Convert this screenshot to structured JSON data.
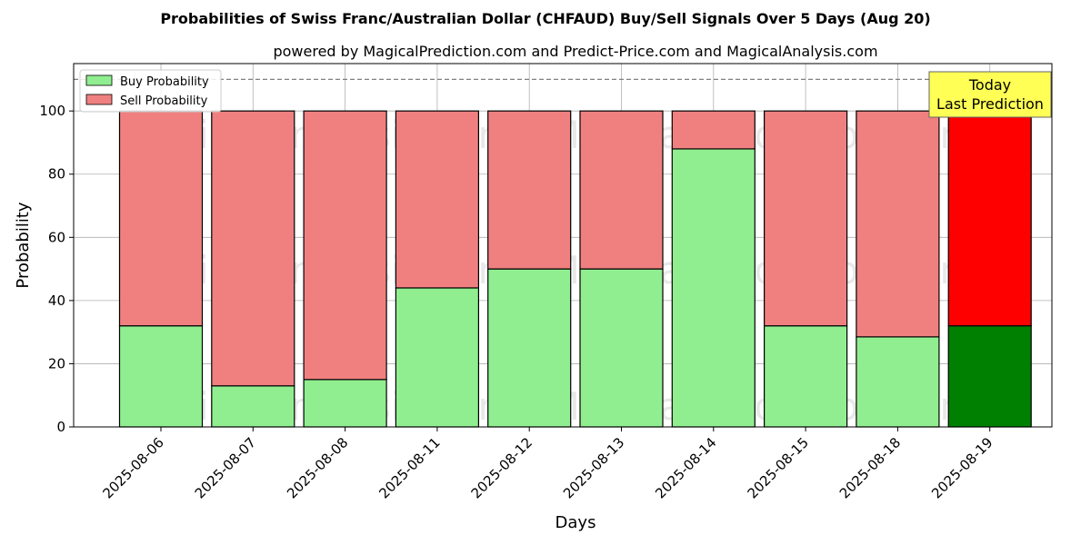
{
  "chart_data": {
    "type": "bar",
    "stacked": true,
    "title": "Probabilities of Swiss Franc/Australian Dollar (CHFAUD) Buy/Sell Signals Over 5 Days (Aug 20)",
    "subtitle": "powered by MagicalPrediction.com and Predict-Price.com and MagicalAnalysis.com",
    "xlabel": "Days",
    "ylabel": "Probability",
    "ylim": [
      0,
      115
    ],
    "yticks": [
      0,
      20,
      40,
      60,
      80,
      100
    ],
    "grid": true,
    "legend_position": "top-left",
    "reference_line": 110,
    "categories": [
      "2025-08-06",
      "2025-08-07",
      "2025-08-08",
      "2025-08-11",
      "2025-08-12",
      "2025-08-13",
      "2025-08-14",
      "2025-08-15",
      "2025-08-18",
      "2025-08-19"
    ],
    "series": [
      {
        "name": "Buy Probability",
        "color": "#90ee90",
        "highlight_color": "#008000",
        "values": [
          32,
          13,
          15,
          44,
          50,
          50,
          88,
          32,
          28.5,
          32
        ]
      },
      {
        "name": "Sell Probability",
        "color": "#f08080",
        "highlight_color": "#ff0000",
        "values": [
          68,
          87,
          85,
          56,
          50,
          50,
          12,
          68,
          71.5,
          68
        ]
      }
    ],
    "highlight_index": 9,
    "annotation": {
      "line1": "Today",
      "line2": "Last Prediction",
      "background": "#ffff55"
    },
    "watermarks": [
      "MagicalAnalysis.com",
      "MagicalPrediction.com"
    ]
  }
}
